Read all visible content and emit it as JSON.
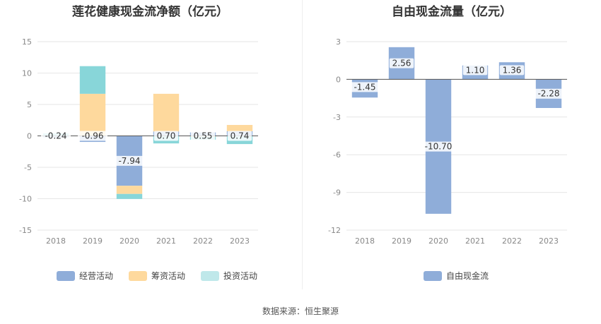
{
  "chart_data": [
    {
      "type": "bar",
      "stacked": true,
      "title": "莲花健康现金流净额（亿元）",
      "categories": [
        "2018",
        "2019",
        "2020",
        "2021",
        "2022",
        "2023"
      ],
      "ylim": [
        -15,
        15
      ],
      "yticks": [
        15,
        10,
        5,
        0,
        -5,
        -10,
        -15
      ],
      "grid": true,
      "legend_position": "bottom",
      "series": [
        {
          "name": "经营活动",
          "color": "#8fadd9",
          "values": [
            -0.24,
            -0.96,
            -7.94,
            0.7,
            0.55,
            0.74
          ]
        },
        {
          "name": "筹资活动",
          "color": "#fed99d",
          "values": [
            0.0,
            6.7,
            -1.3,
            6.0,
            -0.1,
            1.0
          ]
        },
        {
          "name": "投资活动",
          "color": "#88d6d9",
          "values": [
            0.4,
            4.4,
            -0.8,
            -1.2,
            -0.5,
            -1.3
          ]
        }
      ],
      "data_labels": [
        "-0.24",
        "-0.96",
        "-7.94",
        "0.70",
        "0.55",
        "0.74"
      ]
    },
    {
      "type": "bar",
      "title": "自由现金流量（亿元）",
      "categories": [
        "2018",
        "2019",
        "2020",
        "2021",
        "2022",
        "2023"
      ],
      "ylim": [
        -12,
        3
      ],
      "yticks": [
        3,
        0,
        -3,
        -6,
        -9,
        -12
      ],
      "grid": true,
      "legend_position": "bottom",
      "series": [
        {
          "name": "自由现金流",
          "color": "#8fadd9",
          "values": [
            -1.45,
            2.56,
            -10.7,
            1.1,
            1.36,
            -2.28
          ]
        }
      ],
      "data_labels": [
        "-1.45",
        "2.56",
        "-10.70",
        "1.10",
        "1.36",
        "-2.28"
      ]
    }
  ],
  "source": "数据来源：恒生聚源"
}
